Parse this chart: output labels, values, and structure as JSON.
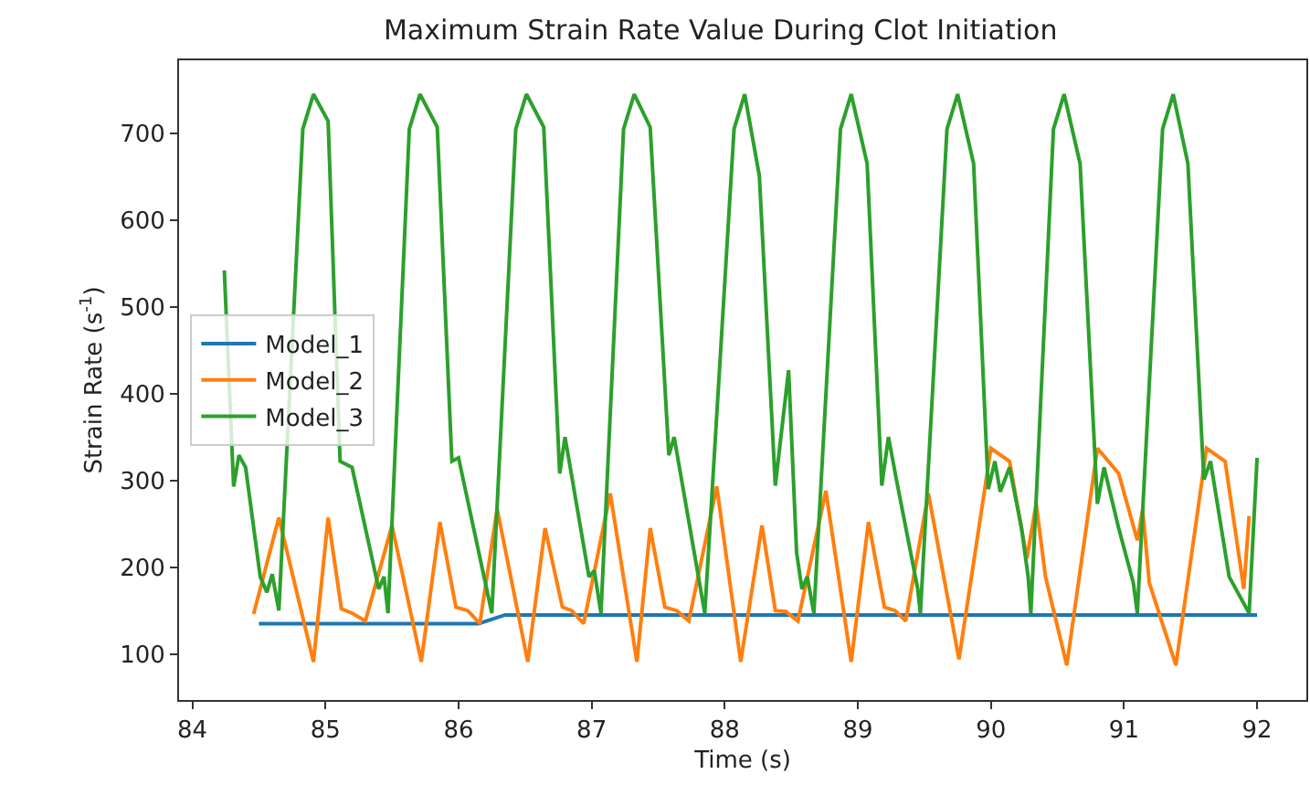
{
  "chart_data": {
    "type": "line",
    "title": "Maximum Strain Rate Value During Clot Initiation",
    "xlabel": "Time (s)",
    "ylabel": "Strain Rate (s$^{-1}$)",
    "xlim": [
      83.9,
      92.37
    ],
    "ylim": [
      47,
      784
    ],
    "xticks": [
      84,
      85,
      86,
      87,
      88,
      89,
      90,
      91,
      92
    ],
    "yticks": [
      100,
      200,
      300,
      400,
      500,
      600,
      700
    ],
    "legend": "left",
    "line_style": "solid",
    "series": [
      {
        "name": "Model_1",
        "color": "#1f77b4",
        "x": [
          84.5,
          86.15,
          86.35,
          92.0
        ],
        "values": [
          135,
          135,
          145,
          145
        ]
      },
      {
        "name": "Model_2",
        "color": "#ff7f0e",
        "x": [
          84.46,
          84.65,
          84.91,
          85.02,
          85.12,
          85.2,
          85.3,
          85.5,
          85.72,
          85.86,
          85.98,
          86.07,
          86.16,
          86.29,
          86.52,
          86.65,
          86.78,
          86.85,
          86.94,
          87.14,
          87.34,
          87.44,
          87.55,
          87.64,
          87.73,
          87.94,
          88.12,
          88.28,
          88.38,
          88.46,
          88.55,
          88.76,
          88.95,
          89.08,
          89.2,
          89.28,
          89.36,
          89.53,
          89.76,
          90.0,
          90.14,
          90.27,
          90.34,
          90.41,
          90.57,
          90.8,
          90.96,
          91.1,
          91.14,
          91.19,
          91.39,
          91.62,
          91.76,
          91.9,
          91.94
        ],
        "values": [
          146,
          257,
          91,
          257,
          152,
          147,
          138,
          248,
          91,
          252,
          154,
          150,
          135,
          267,
          91,
          245,
          154,
          150,
          135,
          285,
          91,
          245,
          154,
          150,
          138,
          293,
          91,
          248,
          150,
          149,
          138,
          288,
          91,
          252,
          154,
          150,
          138,
          285,
          94,
          337,
          322,
          210,
          273,
          189,
          87,
          337,
          308,
          231,
          266,
          182,
          87,
          337,
          322,
          175,
          259
        ]
      },
      {
        "name": "Model_3",
        "color": "#2ca02c",
        "x": [
          84.24,
          84.31,
          84.35,
          84.4,
          84.51,
          84.56,
          84.6,
          84.65,
          84.83,
          84.91,
          85.02,
          85.11,
          85.2,
          85.4,
          85.44,
          85.47,
          85.63,
          85.71,
          85.84,
          85.95,
          86.0,
          86.25,
          86.43,
          86.51,
          86.64,
          86.76,
          86.8,
          86.98,
          87.02,
          87.07,
          87.24,
          87.32,
          87.44,
          87.58,
          87.62,
          87.85,
          88.07,
          88.15,
          88.26,
          88.38,
          88.48,
          88.5,
          88.54,
          88.58,
          88.62,
          88.67,
          88.87,
          88.95,
          89.07,
          89.18,
          89.23,
          89.29,
          89.45,
          89.47,
          89.67,
          89.75,
          89.87,
          89.98,
          90.03,
          90.07,
          90.14,
          90.23,
          90.28,
          90.3,
          90.47,
          90.55,
          90.67,
          90.8,
          90.85,
          90.96,
          91.07,
          91.1,
          91.29,
          91.37,
          91.48,
          91.6,
          91.65,
          91.79,
          91.94,
          92.0
        ],
        "values": [
          542,
          293,
          329,
          315,
          189,
          171,
          192,
          150,
          705,
          745,
          714,
          322,
          315,
          175,
          189,
          147,
          705,
          745,
          707,
          322,
          326,
          147,
          705,
          745,
          707,
          308,
          350,
          189,
          196,
          147,
          705,
          745,
          707,
          329,
          350,
          147,
          705,
          745,
          651,
          294,
          427,
          357,
          217,
          175,
          189,
          147,
          705,
          745,
          665,
          294,
          350,
          301,
          175,
          147,
          705,
          745,
          665,
          290,
          322,
          287,
          315,
          245,
          189,
          147,
          705,
          745,
          665,
          273,
          315,
          245,
          182,
          147,
          705,
          745,
          665,
          301,
          322,
          189,
          147,
          326
        ]
      }
    ]
  }
}
